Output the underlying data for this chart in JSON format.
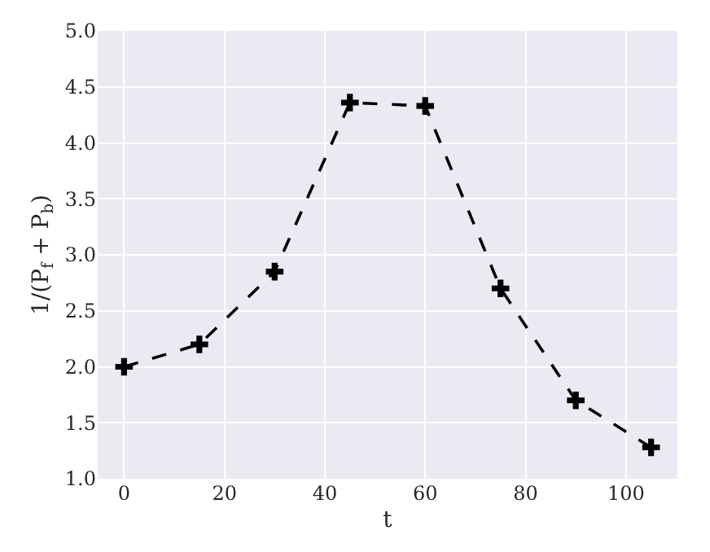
{
  "chart_data": {
    "type": "line",
    "xlabel": "t",
    "ylabel": "1/(P$_{f}$ + P$_{b}$)",
    "x": [
      0,
      15,
      30,
      45,
      60,
      75,
      90,
      105
    ],
    "series": [
      {
        "color": "#000000",
        "values": [
          2.0,
          2.2,
          2.85,
          4.36,
          4.33,
          2.7,
          1.7,
          1.28
        ]
      }
    ],
    "xlim": [
      -5.25,
      110.25
    ],
    "xticks": [
      0,
      20,
      40,
      60,
      80,
      100
    ],
    "ylim": [
      1.0,
      5.0
    ],
    "yticks": [
      {
        "value": 1,
        "label": "1.0"
      },
      1.5,
      {
        "value": 2,
        "label": "2.0"
      },
      2.5,
      {
        "value": 3,
        "label": "3.0"
      },
      3.5,
      {
        "value": 4,
        "label": "4.0"
      },
      4.5,
      {
        "value": 5,
        "label": "5.0"
      }
    ],
    "grid": true,
    "marker": "cross",
    "line_style": "dashed",
    "legend": false
  }
}
